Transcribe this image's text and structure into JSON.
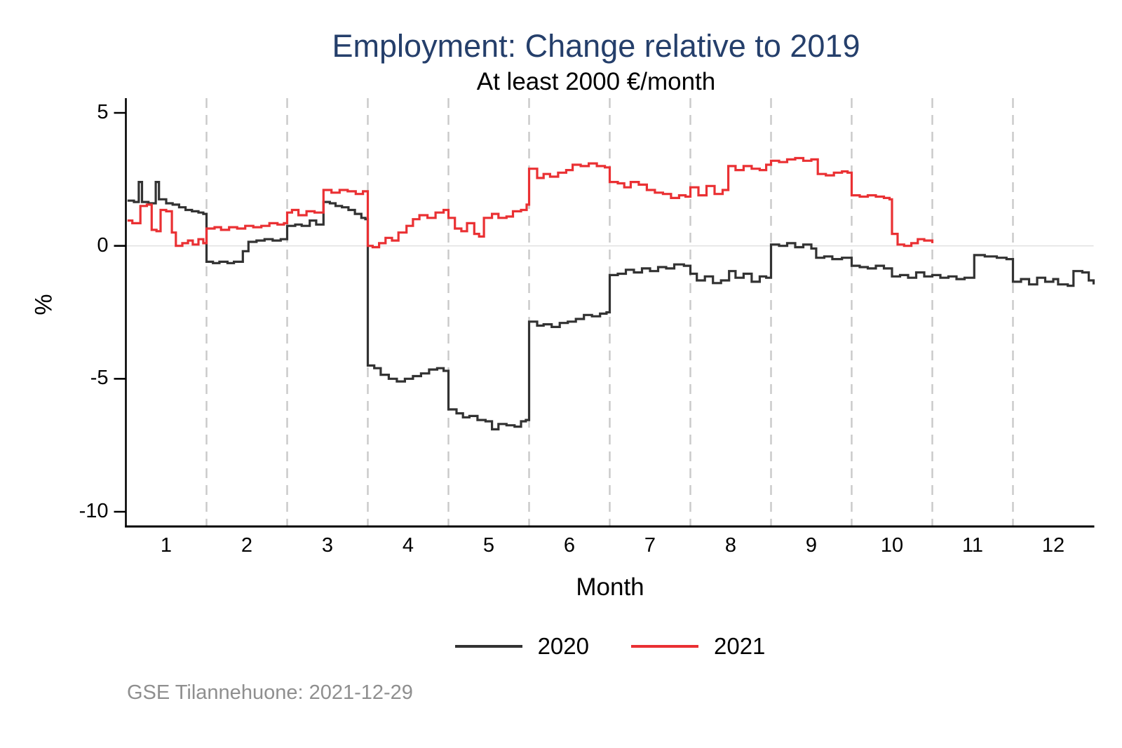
{
  "chart": {
    "title": "Employment: Change relative to 2019",
    "subtitle": "At least 2000 €/month",
    "title_color": "#253f6b",
    "source_note": "GSE Tilannehuone: 2021-12-29"
  },
  "chart_data": {
    "type": "line",
    "style": "step",
    "title": "Employment: Change relative to 2019",
    "subtitle": "At least 2000 €/month",
    "xlabel": "Month",
    "ylabel": "%",
    "xlim": [
      0.5,
      12.5
    ],
    "ylim": [
      -10.6,
      5.55
    ],
    "grid": "vertical-dashed-at-half-months",
    "legend_position": "bottom-center",
    "y_ticks": [
      5,
      0,
      -5,
      -10
    ],
    "x_ticks": [
      1,
      2,
      3,
      4,
      5,
      6,
      7,
      8,
      9,
      10,
      11,
      12
    ],
    "gridlines_x": [
      1.5,
      2.5,
      3.5,
      4.5,
      5.5,
      6.5,
      7.5,
      8.5,
      9.5,
      10.5,
      11.5
    ],
    "zero_line": 0,
    "colors": {
      "series_2020": "#323232",
      "series_2021": "#ea3033",
      "gridline": "#c9c9c9",
      "zero_line": "#e3e3e3",
      "axis": "#000000"
    },
    "series": [
      {
        "name": "2020",
        "color": "#323232",
        "points": [
          [
            0.52,
            1.7
          ],
          [
            0.6,
            1.65
          ],
          [
            0.66,
            2.4
          ],
          [
            0.7,
            1.65
          ],
          [
            0.78,
            1.6
          ],
          [
            0.87,
            2.4
          ],
          [
            0.91,
            1.75
          ],
          [
            1.0,
            1.6
          ],
          [
            1.08,
            1.55
          ],
          [
            1.16,
            1.45
          ],
          [
            1.24,
            1.35
          ],
          [
            1.32,
            1.3
          ],
          [
            1.4,
            1.25
          ],
          [
            1.46,
            1.2
          ],
          [
            1.5,
            -0.6
          ],
          [
            1.58,
            -0.65
          ],
          [
            1.66,
            -0.6
          ],
          [
            1.76,
            -0.65
          ],
          [
            1.84,
            -0.6
          ],
          [
            1.95,
            -0.2
          ],
          [
            2.02,
            0.15
          ],
          [
            2.12,
            0.2
          ],
          [
            2.22,
            0.25
          ],
          [
            2.32,
            0.2
          ],
          [
            2.42,
            0.25
          ],
          [
            2.5,
            0.75
          ],
          [
            2.6,
            0.8
          ],
          [
            2.68,
            0.75
          ],
          [
            2.78,
            0.95
          ],
          [
            2.86,
            0.8
          ],
          [
            2.95,
            1.65
          ],
          [
            3.03,
            1.6
          ],
          [
            3.1,
            1.5
          ],
          [
            3.18,
            1.45
          ],
          [
            3.26,
            1.35
          ],
          [
            3.34,
            1.2
          ],
          [
            3.42,
            1.05
          ],
          [
            3.47,
            1.0
          ],
          [
            3.5,
            -4.5
          ],
          [
            3.58,
            -4.6
          ],
          [
            3.66,
            -4.85
          ],
          [
            3.76,
            -5.0
          ],
          [
            3.86,
            -5.1
          ],
          [
            3.96,
            -5.0
          ],
          [
            4.06,
            -4.9
          ],
          [
            4.16,
            -4.8
          ],
          [
            4.26,
            -4.65
          ],
          [
            4.36,
            -4.6
          ],
          [
            4.44,
            -4.7
          ],
          [
            4.5,
            -6.15
          ],
          [
            4.6,
            -6.3
          ],
          [
            4.68,
            -6.45
          ],
          [
            4.76,
            -6.4
          ],
          [
            4.86,
            -6.55
          ],
          [
            4.96,
            -6.6
          ],
          [
            5.04,
            -6.9
          ],
          [
            5.12,
            -6.7
          ],
          [
            5.22,
            -6.75
          ],
          [
            5.32,
            -6.8
          ],
          [
            5.4,
            -6.6
          ],
          [
            5.46,
            -6.55
          ],
          [
            5.5,
            -2.85
          ],
          [
            5.6,
            -3.0
          ],
          [
            5.68,
            -2.95
          ],
          [
            5.78,
            -3.05
          ],
          [
            5.88,
            -2.9
          ],
          [
            5.98,
            -2.85
          ],
          [
            6.08,
            -2.75
          ],
          [
            6.18,
            -2.6
          ],
          [
            6.28,
            -2.65
          ],
          [
            6.38,
            -2.55
          ],
          [
            6.46,
            -2.5
          ],
          [
            6.5,
            -1.1
          ],
          [
            6.6,
            -1.05
          ],
          [
            6.7,
            -0.9
          ],
          [
            6.8,
            -1.0
          ],
          [
            6.9,
            -0.85
          ],
          [
            7.0,
            -0.95
          ],
          [
            7.1,
            -0.8
          ],
          [
            7.2,
            -0.85
          ],
          [
            7.3,
            -0.7
          ],
          [
            7.42,
            -0.75
          ],
          [
            7.5,
            -1.05
          ],
          [
            7.58,
            -1.3
          ],
          [
            7.68,
            -1.15
          ],
          [
            7.78,
            -1.4
          ],
          [
            7.88,
            -1.3
          ],
          [
            7.98,
            -0.95
          ],
          [
            8.06,
            -1.2
          ],
          [
            8.16,
            -1.05
          ],
          [
            8.26,
            -1.35
          ],
          [
            8.36,
            -1.15
          ],
          [
            8.44,
            -1.2
          ],
          [
            8.5,
            0.05
          ],
          [
            8.6,
            0.0
          ],
          [
            8.7,
            0.1
          ],
          [
            8.8,
            -0.05
          ],
          [
            8.9,
            0.05
          ],
          [
            9.0,
            -0.1
          ],
          [
            9.06,
            -0.45
          ],
          [
            9.16,
            -0.4
          ],
          [
            9.26,
            -0.5
          ],
          [
            9.38,
            -0.45
          ],
          [
            9.5,
            -0.75
          ],
          [
            9.6,
            -0.8
          ],
          [
            9.7,
            -0.85
          ],
          [
            9.8,
            -0.75
          ],
          [
            9.9,
            -0.85
          ],
          [
            10.0,
            -1.15
          ],
          [
            10.1,
            -1.1
          ],
          [
            10.2,
            -1.2
          ],
          [
            10.3,
            -1.0
          ],
          [
            10.4,
            -1.15
          ],
          [
            10.5,
            -1.1
          ],
          [
            10.6,
            -1.2
          ],
          [
            10.7,
            -1.15
          ],
          [
            10.8,
            -1.25
          ],
          [
            10.9,
            -1.2
          ],
          [
            11.02,
            -0.35
          ],
          [
            11.15,
            -0.4
          ],
          [
            11.3,
            -0.45
          ],
          [
            11.42,
            -0.5
          ],
          [
            11.5,
            -1.35
          ],
          [
            11.6,
            -1.25
          ],
          [
            11.7,
            -1.45
          ],
          [
            11.8,
            -1.2
          ],
          [
            11.9,
            -1.35
          ],
          [
            12.0,
            -1.25
          ],
          [
            12.06,
            -1.45
          ],
          [
            12.18,
            -1.5
          ],
          [
            12.25,
            -0.95
          ],
          [
            12.36,
            -1.0
          ],
          [
            12.44,
            -1.3
          ],
          [
            12.5,
            -1.45
          ]
        ]
      },
      {
        "name": "2021",
        "color": "#ea3033",
        "points": [
          [
            0.52,
            0.95
          ],
          [
            0.58,
            0.85
          ],
          [
            0.68,
            1.5
          ],
          [
            0.76,
            1.55
          ],
          [
            0.82,
            0.6
          ],
          [
            0.88,
            0.55
          ],
          [
            0.93,
            1.35
          ],
          [
            1.0,
            1.3
          ],
          [
            1.07,
            0.5
          ],
          [
            1.12,
            0.0
          ],
          [
            1.2,
            0.1
          ],
          [
            1.27,
            0.2
          ],
          [
            1.33,
            0.05
          ],
          [
            1.4,
            0.25
          ],
          [
            1.46,
            0.1
          ],
          [
            1.5,
            0.65
          ],
          [
            1.6,
            0.7
          ],
          [
            1.68,
            0.6
          ],
          [
            1.78,
            0.7
          ],
          [
            1.88,
            0.65
          ],
          [
            1.98,
            0.75
          ],
          [
            2.08,
            0.7
          ],
          [
            2.18,
            0.75
          ],
          [
            2.28,
            0.85
          ],
          [
            2.38,
            0.8
          ],
          [
            2.46,
            0.85
          ],
          [
            2.5,
            1.25
          ],
          [
            2.56,
            1.35
          ],
          [
            2.64,
            1.15
          ],
          [
            2.74,
            1.3
          ],
          [
            2.84,
            1.25
          ],
          [
            2.95,
            2.1
          ],
          [
            3.05,
            2.0
          ],
          [
            3.15,
            2.1
          ],
          [
            3.25,
            2.05
          ],
          [
            3.35,
            1.95
          ],
          [
            3.44,
            2.05
          ],
          [
            3.5,
            0.0
          ],
          [
            3.56,
            -0.05
          ],
          [
            3.64,
            0.1
          ],
          [
            3.72,
            0.3
          ],
          [
            3.8,
            0.2
          ],
          [
            3.88,
            0.5
          ],
          [
            3.98,
            0.75
          ],
          [
            4.06,
            1.0
          ],
          [
            4.14,
            1.15
          ],
          [
            4.24,
            1.05
          ],
          [
            4.34,
            1.25
          ],
          [
            4.44,
            1.35
          ],
          [
            4.5,
            1.05
          ],
          [
            4.58,
            0.65
          ],
          [
            4.66,
            0.55
          ],
          [
            4.73,
            0.85
          ],
          [
            4.82,
            0.45
          ],
          [
            4.88,
            0.35
          ],
          [
            4.94,
            1.05
          ],
          [
            5.04,
            1.2
          ],
          [
            5.12,
            1.05
          ],
          [
            5.22,
            1.1
          ],
          [
            5.3,
            1.3
          ],
          [
            5.4,
            1.35
          ],
          [
            5.47,
            1.55
          ],
          [
            5.5,
            2.9
          ],
          [
            5.6,
            2.55
          ],
          [
            5.68,
            2.7
          ],
          [
            5.76,
            2.6
          ],
          [
            5.86,
            2.75
          ],
          [
            5.96,
            2.85
          ],
          [
            6.04,
            3.05
          ],
          [
            6.14,
            3.0
          ],
          [
            6.24,
            3.1
          ],
          [
            6.34,
            3.0
          ],
          [
            6.44,
            2.95
          ],
          [
            6.5,
            2.4
          ],
          [
            6.6,
            2.35
          ],
          [
            6.68,
            2.2
          ],
          [
            6.76,
            2.4
          ],
          [
            6.86,
            2.3
          ],
          [
            6.96,
            2.1
          ],
          [
            7.06,
            2.0
          ],
          [
            7.16,
            1.95
          ],
          [
            7.26,
            1.8
          ],
          [
            7.36,
            1.9
          ],
          [
            7.44,
            1.85
          ],
          [
            7.5,
            2.2
          ],
          [
            7.6,
            1.9
          ],
          [
            7.7,
            2.25
          ],
          [
            7.8,
            1.95
          ],
          [
            7.9,
            2.1
          ],
          [
            7.97,
            3.0
          ],
          [
            8.06,
            2.85
          ],
          [
            8.16,
            3.0
          ],
          [
            8.26,
            2.9
          ],
          [
            8.36,
            2.85
          ],
          [
            8.44,
            3.05
          ],
          [
            8.5,
            3.2
          ],
          [
            8.6,
            3.15
          ],
          [
            8.7,
            3.25
          ],
          [
            8.8,
            3.3
          ],
          [
            8.9,
            3.2
          ],
          [
            9.0,
            3.25
          ],
          [
            9.08,
            2.7
          ],
          [
            9.18,
            2.65
          ],
          [
            9.28,
            2.75
          ],
          [
            9.38,
            2.8
          ],
          [
            9.45,
            2.75
          ],
          [
            9.5,
            1.9
          ],
          [
            9.6,
            1.85
          ],
          [
            9.7,
            1.9
          ],
          [
            9.8,
            1.85
          ],
          [
            9.9,
            1.8
          ],
          [
            9.97,
            1.75
          ],
          [
            10.0,
            0.45
          ],
          [
            10.07,
            0.05
          ],
          [
            10.15,
            0.0
          ],
          [
            10.24,
            0.1
          ],
          [
            10.32,
            0.25
          ],
          [
            10.4,
            0.2
          ],
          [
            10.5,
            0.1
          ]
        ]
      }
    ]
  },
  "axes": {
    "xlabel": "Month",
    "ylabel": "%",
    "y_tick_labels": [
      "5",
      "0",
      "-5",
      "-10"
    ],
    "x_tick_labels": [
      "1",
      "2",
      "3",
      "4",
      "5",
      "6",
      "7",
      "8",
      "9",
      "10",
      "11",
      "12"
    ]
  },
  "legend": {
    "items": [
      {
        "label": "2020",
        "color": "#323232"
      },
      {
        "label": "2021",
        "color": "#ea3033"
      }
    ]
  }
}
